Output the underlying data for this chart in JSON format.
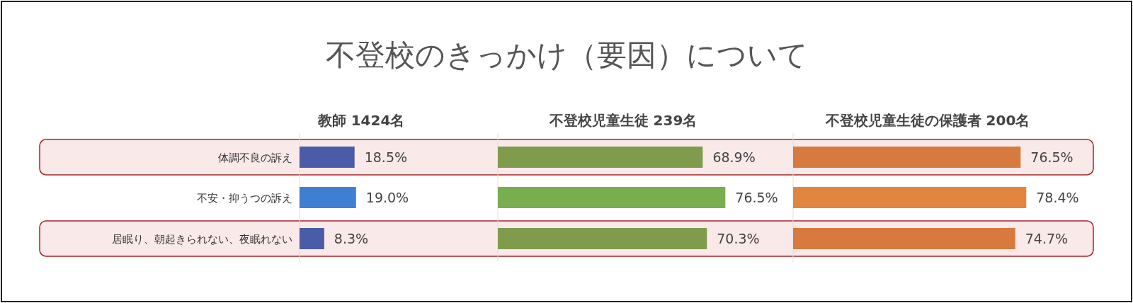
{
  "chart_data": [
    {
      "type": "other",
      "title": "不登校のきっかけ（要因）について"
    },
    {
      "type": "bar",
      "orientation": "horizontal",
      "title": "教師 1424名",
      "categories": [
        "体調不良の訴え",
        "不安・抑うつの訴え",
        "居眠り、朝起きられない、夜眠れない"
      ],
      "values": [
        18.5,
        19.0,
        8.3
      ],
      "value_labels": [
        "18.5%",
        "19.0%",
        "8.3%"
      ],
      "colors": [
        "#4a5ba8",
        "#3f7fd3",
        "#4a5ba8"
      ],
      "tick_labels": "y",
      "bands": [
        {
          "axis": "y",
          "from": "体調不良の訴え",
          "to": "体調不良の訴え",
          "color": "#f9e9e9"
        },
        {
          "axis": "y",
          "from": "居眠り、朝起きられない、夜眠れない",
          "to": "居眠り、朝起きられない、夜眠れない",
          "color": "#f9e9e9"
        }
      ]
    },
    {
      "type": "bar",
      "orientation": "horizontal",
      "title": "不登校児童生徒 239名",
      "values": [
        68.9,
        76.5,
        70.3
      ],
      "value_labels": [
        "68.9%",
        "76.5%",
        "70.3%"
      ],
      "colors": [
        "#7f9c4c",
        "#79ae4f",
        "#7f9c4c"
      ]
    },
    {
      "type": "bar",
      "orientation": "horizontal",
      "title": "不登校児童生徒の保護者 200名",
      "values": [
        76.5,
        78.4,
        74.7
      ],
      "value_labels": [
        "76.5%",
        "78.4%",
        "74.7%"
      ],
      "colors": [
        "#d67a3f",
        "#e2853f",
        "#d67a3f"
      ]
    }
  ]
}
